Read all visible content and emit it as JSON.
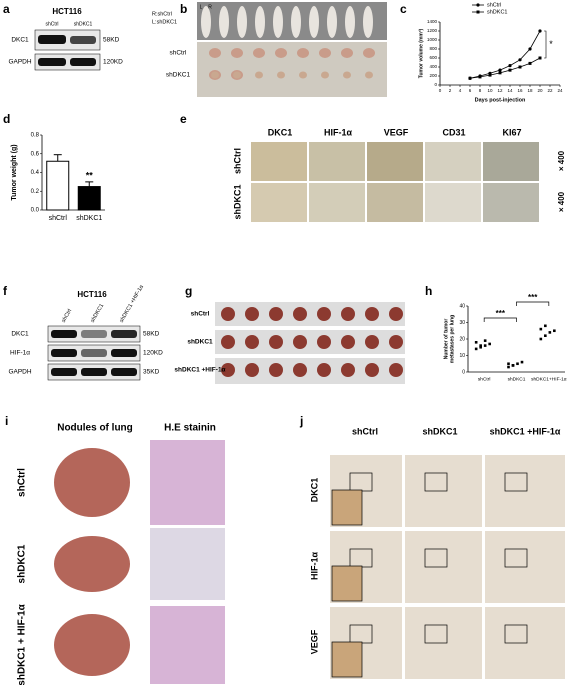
{
  "panels": {
    "a": {
      "label": "a",
      "title": "HCT116",
      "lanes": [
        "shCtrl",
        "shDKC1"
      ],
      "rows": [
        "DKC1",
        "GAPDH"
      ],
      "sizes": [
        "58KD",
        "120KD"
      ]
    },
    "b": {
      "label": "b",
      "legend": [
        "R:shCtrl",
        "L:shDKC1"
      ],
      "side_labels": [
        "L",
        "R"
      ],
      "rows": [
        "shCtrl",
        "shDKC1"
      ]
    },
    "e": {
      "label": "e",
      "columns": [
        "DKC1",
        "HIF-1α",
        "VEGF",
        "CD31",
        "KI67"
      ],
      "rows": [
        "shCtrl",
        "shDKC1"
      ],
      "magnification": [
        "× 400",
        "× 400"
      ]
    },
    "f": {
      "label": "f",
      "title": "HCT116",
      "lanes": [
        "shCtrl",
        "shDKC1",
        "shDKC1 +HIF-1α"
      ],
      "rows": [
        "DKC1",
        "HIF-1α",
        "GAPDH"
      ],
      "sizes": [
        "58KD",
        "120KD",
        "35KD"
      ]
    },
    "g": {
      "label": "g",
      "rows": [
        "shCtrl",
        "shDKC1",
        "shDKC1 +HIF-1α"
      ]
    },
    "i": {
      "label": "i",
      "columns": [
        "Nodules of lung",
        "H.E stainin"
      ],
      "rows": [
        "shCtrl",
        "shDKC1",
        "shDKC1 + HIF-1α"
      ]
    },
    "j": {
      "label": "j",
      "columns": [
        "shCtrl",
        "shDKC1",
        "shDKC1 +HIF-1α"
      ],
      "rows": [
        "DKC1",
        "HIF-1α",
        "VEGF"
      ]
    }
  },
  "chart_data": [
    {
      "type": "line",
      "label": "c",
      "xlabel": "Days post-injection",
      "ylabel": "Tumor volume (mm³)",
      "x": [
        6,
        8,
        10,
        12,
        14,
        16,
        18,
        20
      ],
      "series": [
        {
          "name": "shCtrl",
          "color": "#000000",
          "values": [
            150,
            200,
            260,
            330,
            430,
            560,
            800,
            1200
          ]
        },
        {
          "name": "shDKC1",
          "color": "#000000",
          "values": [
            150,
            180,
            220,
            270,
            330,
            400,
            480,
            600
          ]
        }
      ],
      "xlim": [
        0,
        24
      ],
      "xticks": [
        0,
        2,
        4,
        6,
        8,
        10,
        12,
        14,
        16,
        18,
        20,
        22,
        24
      ],
      "ylim": [
        0,
        1400
      ],
      "yticks": [
        0,
        200,
        400,
        600,
        800,
        1000,
        1200,
        1400
      ],
      "annotation": "*"
    },
    {
      "type": "bar",
      "label": "d",
      "ylabel": "Tumor weight (g)",
      "categories": [
        "shCtrl",
        "shDKC1"
      ],
      "values": [
        0.52,
        0.25
      ],
      "errors": [
        0.07,
        0.05
      ],
      "colors": [
        "#ffffff",
        "#000000"
      ],
      "ylim": [
        0,
        0.8
      ],
      "yticks": [
        {
          "value": 0,
          "label": "0.0"
        },
        0.2,
        0.4,
        0.6,
        0.8
      ],
      "annotation": "**"
    },
    {
      "type": "scatter",
      "label": "h",
      "ylabel": [
        "Number of tumor",
        "metastases per lung"
      ],
      "categories": [
        "shCtrl",
        "shDKC1",
        "shDKC1+HIF-1α"
      ],
      "values": [
        [
          14,
          15,
          16,
          17,
          18,
          16,
          19
        ],
        [
          3,
          4,
          5,
          6,
          5,
          4
        ],
        [
          20,
          22,
          24,
          25,
          26,
          28
        ]
      ],
      "ylim": [
        0,
        40
      ],
      "yticks": [
        0,
        10,
        20,
        30,
        40
      ],
      "annotations": [
        "***",
        "***"
      ]
    }
  ]
}
